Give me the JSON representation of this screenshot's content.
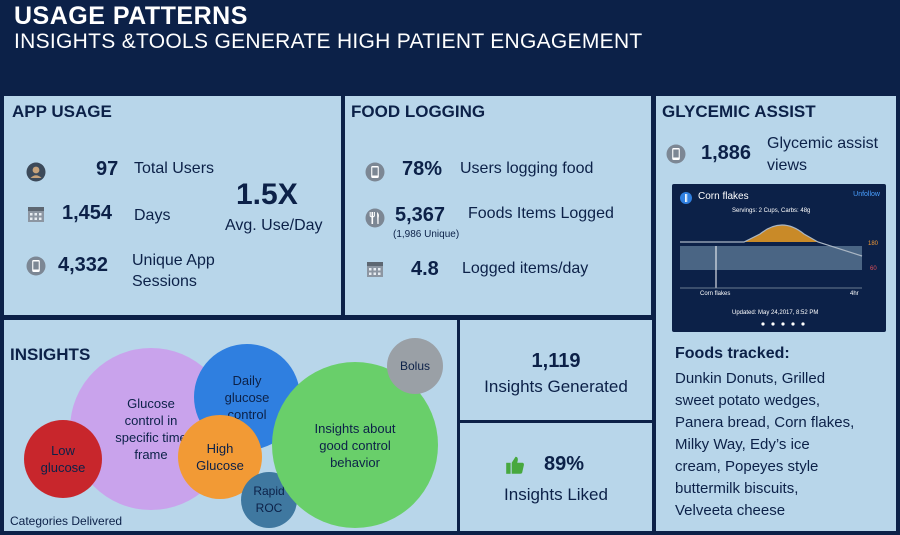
{
  "header": {
    "title": "USAGE PATTERNS",
    "subtitle": "INSIGHTS &TOOLS GENERATE HIGH PATIENT ENGAGEMENT"
  },
  "app_usage": {
    "title": "APP USAGE",
    "total_users_value": "97",
    "total_users_label": "Total Users",
    "days_value": "1,454",
    "days_label": "Days",
    "sessions_value": "4,332",
    "sessions_label_1": "Unique App",
    "sessions_label_2": "Sessions",
    "avg_value": "1.5X",
    "avg_label": "Avg. Use/Day"
  },
  "food_logging": {
    "title": "FOOD LOGGING",
    "pct_value": "78%",
    "pct_label": "Users logging food",
    "foods_value": "5,367",
    "foods_label": "Foods Items Logged",
    "foods_unique": "(1,986 Unique)",
    "items_value": "4.8",
    "items_label": "Logged items/day"
  },
  "glycemic": {
    "title": "GLYCEMIC ASSIST",
    "views_value": "1,886",
    "views_label_1": "Glycemic assist",
    "views_label_2": "views",
    "card": {
      "food": "Corn flakes",
      "unfollow": "Unfollow",
      "servings": "Servings: 2 Cups, Carbs: 48g",
      "y_high": "180",
      "y_low": "60",
      "x_start": "Corn flakes",
      "x_end": "4hr",
      "updated": "Updated: May 24,2017, 8:52 PM"
    },
    "foods_title": "Foods tracked:",
    "foods_lines": [
      "Dunkin Donuts, Grilled",
      "sweet potato wedges,",
      "Panera bread, Corn flakes,",
      "Milky Way, Edy’s ice",
      "cream, Popeyes style",
      "buttermilk biscuits,",
      "Velveeta cheese"
    ]
  },
  "insights": {
    "title": "INSIGHTS",
    "categories_label": "Categories Delivered",
    "bubbles": {
      "glucose_control": "Glucose control in specific time frame",
      "daily": "Daily glucose control",
      "low": "Low glucose",
      "high": "High Glucose",
      "good": "Insights about good control behavior",
      "bolus": "Bolus",
      "rapid": "Rapid ROC"
    },
    "generated_value": "1,119",
    "generated_label": "Insights Generated",
    "liked_value": "89%",
    "liked_label": "Insights Liked"
  },
  "colors": {
    "background": "#0c2148",
    "panel": "#b8d6ea",
    "purple": "#c9a3ec",
    "blue": "#2f7fe0",
    "red": "#c8262c",
    "orange": "#f29a35",
    "green": "#69cf6a",
    "gray": "#9aa0a6",
    "steel": "#3f78a0"
  }
}
